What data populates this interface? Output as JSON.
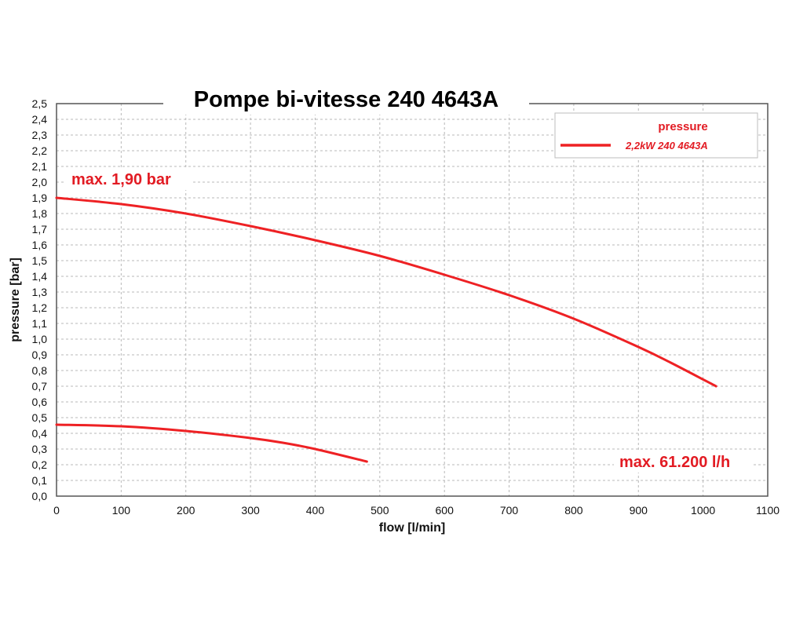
{
  "chart_data": {
    "type": "line",
    "title": "Pompe bi-vitesse 240 4643A",
    "xlabel": "flow [l/min]",
    "ylabel": "pressure [bar]",
    "xlim": [
      0,
      1100
    ],
    "ylim": [
      0,
      2.5
    ],
    "x_ticks": [
      "0",
      "100",
      "200",
      "300",
      "400",
      "500",
      "600",
      "700",
      "800",
      "900",
      "1000",
      "1100"
    ],
    "y_ticks": [
      "0,0",
      "0,1",
      "0,2",
      "0,3",
      "0,4",
      "0,5",
      "0,6",
      "0,7",
      "0,8",
      "0,9",
      "1,0",
      "1,1",
      "1,2",
      "1,3",
      "1,4",
      "1,5",
      "1,6",
      "1,7",
      "1,8",
      "1,9",
      "2,0",
      "2,1",
      "2,2",
      "2,3",
      "2,4",
      "2,5"
    ],
    "grid": true,
    "legend": {
      "position": "top-right",
      "title": "pressure",
      "entries": [
        "2,2kW  240 4643A"
      ]
    },
    "series": [
      {
        "x": [
          0,
          100,
          200,
          300,
          400,
          500,
          600,
          700,
          800,
          900,
          950,
          1020
        ],
        "y": [
          1.9,
          1.86,
          1.8,
          1.72,
          1.63,
          1.53,
          1.41,
          1.28,
          1.13,
          0.95,
          0.85,
          0.7
        ]
      },
      {
        "x": [
          0,
          100,
          200,
          300,
          350,
          400,
          480
        ],
        "y": [
          0.455,
          0.445,
          0.415,
          0.37,
          0.34,
          0.3,
          0.22
        ]
      }
    ],
    "annotations": [
      {
        "text": "max. 1,90 bar"
      },
      {
        "text": "max. 61.200 l/h"
      }
    ],
    "colors": {
      "series": "#ee2124",
      "annotation": "#e21b23",
      "grid": "#b8b8b8",
      "axis": "#555555"
    }
  }
}
